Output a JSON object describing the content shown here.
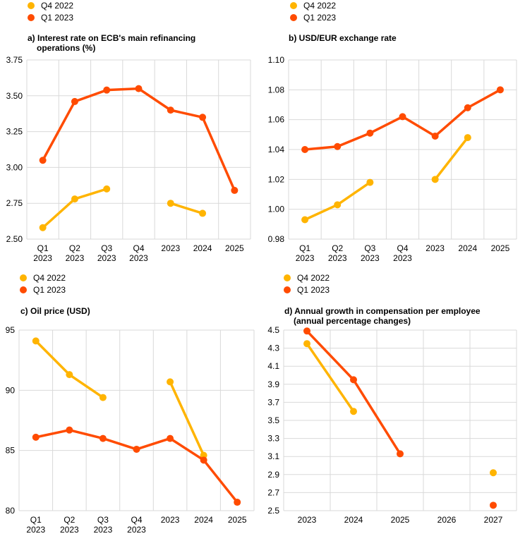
{
  "colors": {
    "q4_2022": "#FFB400",
    "q1_2023": "#FF4B00",
    "grid": "#D9D9D9"
  },
  "chart_data": [
    {
      "type": "line",
      "title": "a) Interest rate on ECB's main refinancing",
      "title_line2": "operations (%)",
      "categories": [
        "Q1\n2023",
        "Q2\n2023",
        "Q3\n2023",
        "Q4\n2023",
        "2023",
        "2024",
        "2025"
      ],
      "ylim": [
        2.5,
        3.75
      ],
      "yticks": [
        "2.50",
        "2.75",
        "3.00",
        "3.25",
        "3.50",
        "3.75"
      ],
      "grid": true,
      "legend": "top-left",
      "series": [
        {
          "name": "Q4 2022",
          "values": [
            2.58,
            2.78,
            2.85,
            null,
            2.75,
            2.68,
            null
          ]
        },
        {
          "name": "Q1 2023",
          "values": [
            3.05,
            3.46,
            3.54,
            3.55,
            3.4,
            3.35,
            2.84
          ]
        }
      ]
    },
    {
      "type": "line",
      "title": "b) USD/EUR exchange rate",
      "title_line2": "",
      "categories": [
        "Q1\n2023",
        "Q2\n2023",
        "Q3\n2023",
        "Q4\n2023",
        "2023",
        "2024",
        "2025"
      ],
      "ylim": [
        0.98,
        1.1
      ],
      "yticks": [
        "0.98",
        "1.00",
        "1.02",
        "1.04",
        "1.06",
        "1.08",
        "1.10"
      ],
      "grid": true,
      "legend": "top-left",
      "series": [
        {
          "name": "Q4 2022",
          "values": [
            0.993,
            1.003,
            1.018,
            null,
            1.02,
            1.048,
            null
          ]
        },
        {
          "name": "Q1 2023",
          "values": [
            1.04,
            1.042,
            1.051,
            1.062,
            1.049,
            1.068,
            1.08
          ]
        }
      ]
    },
    {
      "type": "line",
      "title": "c) Oil price (USD)",
      "title_line2": "",
      "categories": [
        "Q1\n2023",
        "Q2\n2023",
        "Q3\n2023",
        "Q4\n2023",
        "2023",
        "2024",
        "2025"
      ],
      "ylim": [
        80,
        95
      ],
      "yticks": [
        "80",
        "85",
        "90",
        "95"
      ],
      "grid": true,
      "legend": "top-left",
      "series": [
        {
          "name": "Q4 2022",
          "values": [
            94.1,
            91.3,
            89.4,
            null,
            90.7,
            84.6,
            null
          ]
        },
        {
          "name": "Q1 2023",
          "values": [
            86.1,
            86.7,
            86.0,
            85.1,
            86.0,
            84.2,
            80.7
          ]
        }
      ]
    },
    {
      "type": "line",
      "title": "d) Annual growth in compensation per employee",
      "title_line2": "(annual percentage changes)",
      "categories": [
        "2023",
        "2024",
        "2025",
        "2026",
        "2027"
      ],
      "ylim": [
        2.5,
        4.5
      ],
      "yticks": [
        "2.5",
        "2.7",
        "2.9",
        "3.1",
        "3.3",
        "3.5",
        "3.7",
        "3.9",
        "4.1",
        "4.3",
        "4.5"
      ],
      "grid": true,
      "legend": "top-left",
      "series": [
        {
          "name": "Q4 2022",
          "values": [
            4.35,
            3.6,
            null,
            null,
            2.92
          ],
          "markers": [
            true,
            true,
            false,
            false,
            true
          ]
        },
        {
          "name": "Q1 2023",
          "values": [
            4.49,
            3.95,
            3.13,
            null,
            2.56
          ],
          "markers": [
            true,
            true,
            true,
            false,
            true
          ]
        }
      ]
    }
  ]
}
